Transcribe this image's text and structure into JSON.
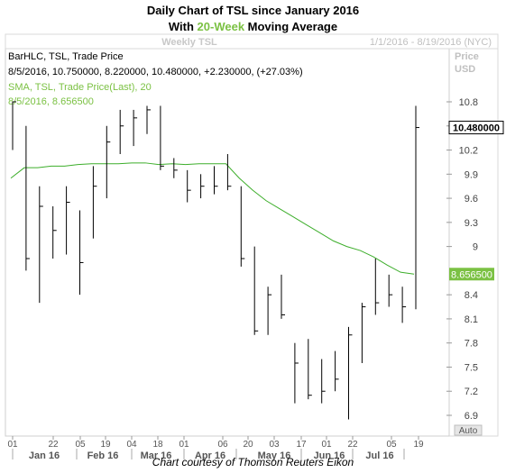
{
  "header": {
    "title_line1": "Daily Chart of TSL since January 2016",
    "title_line2_prefix": "With ",
    "title_line2_highlight": "20-Week",
    "title_line2_suffix": " Moving Average",
    "highlight_color": "#7bc143"
  },
  "chart_data": {
    "type": "line",
    "panel_title": "Weekly TSL",
    "date_range": "1/1/2016 - 8/19/2016 (NYC)",
    "price_label": "Price",
    "currency_label": "USD",
    "legend_lines": [
      "BarHLC, TSL, Trade Price",
      "8/5/2016, 10.750000, 8.220000, 10.480000, +2.230000, (+27.03%)",
      "SMA, TSL, Trade Price(Last),  20",
      "8/5/2016, 8.656500"
    ],
    "last_price_tag": "10.480000",
    "sma_tag": "8.656500",
    "auto_label": "Auto",
    "y_ticks": [
      "10.8",
      "10.5",
      "10.2",
      "9.9",
      "9.6",
      "9.3",
      "9",
      "8.4",
      "8.1",
      "7.8",
      "7.5",
      "7.2",
      "6.9"
    ],
    "x_day_ticks": [
      "01",
      "22",
      "05",
      "19",
      "04",
      "18",
      "01",
      "06",
      "20",
      "03",
      "17",
      "01",
      "22",
      "05",
      "19"
    ],
    "x_month_labels": [
      "Jan 16",
      "Feb 16",
      "Mar 16",
      "Apr 16",
      "May 16",
      "Jun 16",
      "Jul 16"
    ],
    "ylim": [
      6.8,
      11.3
    ],
    "bars": [
      {
        "high": 10.8,
        "low": 10.2,
        "close": 10.8
      },
      {
        "high": 10.5,
        "low": 8.7,
        "close": 8.85
      },
      {
        "high": 9.75,
        "low": 8.3,
        "close": 9.5
      },
      {
        "high": 9.5,
        "low": 8.85,
        "close": 9.2
      },
      {
        "high": 9.75,
        "low": 8.9,
        "close": 9.55
      },
      {
        "high": 9.45,
        "low": 8.4,
        "close": 8.8
      },
      {
        "high": 10.0,
        "low": 9.1,
        "close": 9.75
      },
      {
        "high": 10.5,
        "low": 9.6,
        "close": 10.3
      },
      {
        "high": 10.7,
        "low": 10.15,
        "close": 10.5
      },
      {
        "high": 10.7,
        "low": 10.25,
        "close": 10.6
      },
      {
        "high": 10.75,
        "low": 10.4,
        "close": 10.7
      },
      {
        "high": 10.75,
        "low": 9.95,
        "close": 10.0
      },
      {
        "high": 10.1,
        "low": 9.85,
        "close": 9.95
      },
      {
        "high": 9.95,
        "low": 9.55,
        "close": 9.7
      },
      {
        "high": 9.9,
        "low": 9.6,
        "close": 9.75
      },
      {
        "high": 10.0,
        "low": 9.65,
        "close": 9.75
      },
      {
        "high": 10.15,
        "low": 9.7,
        "close": 9.75
      },
      {
        "high": 9.75,
        "low": 8.75,
        "close": 8.85
      },
      {
        "high": 9.0,
        "low": 7.9,
        "close": 7.95
      },
      {
        "high": 8.5,
        "low": 7.9,
        "close": 8.4
      },
      {
        "high": 8.65,
        "low": 8.1,
        "close": 8.15
      },
      {
        "high": 7.8,
        "low": 7.05,
        "close": 7.55
      },
      {
        "high": 7.85,
        "low": 7.1,
        "close": 7.15
      },
      {
        "high": 7.6,
        "low": 7.05,
        "close": 7.2
      },
      {
        "high": 7.7,
        "low": 7.2,
        "close": 7.35
      },
      {
        "high": 8.0,
        "low": 6.85,
        "close": 7.9
      },
      {
        "high": 8.3,
        "low": 7.55,
        "close": 8.25
      },
      {
        "high": 8.85,
        "low": 8.15,
        "close": 8.3
      },
      {
        "high": 8.65,
        "low": 8.25,
        "close": 8.4
      },
      {
        "high": 8.5,
        "low": 8.05,
        "close": 8.25
      },
      {
        "high": 10.75,
        "low": 8.22,
        "close": 10.48
      }
    ],
    "sma": [
      9.85,
      9.98,
      9.98,
      10.0,
      10.0,
      10.02,
      10.03,
      10.03,
      10.03,
      10.04,
      10.04,
      10.02,
      10.03,
      10.02,
      10.03,
      10.03,
      10.03,
      9.85,
      9.7,
      9.57,
      9.47,
      9.37,
      9.27,
      9.17,
      9.07,
      9.0,
      8.95,
      8.87,
      8.77,
      8.68,
      8.6565
    ],
    "bar_color": "#000000",
    "sma_color": "#3dae2b",
    "sma_tag_color": "#7bc143"
  },
  "footer": {
    "credit": "Chart courtesy of Thomson Reuters Eikon"
  }
}
